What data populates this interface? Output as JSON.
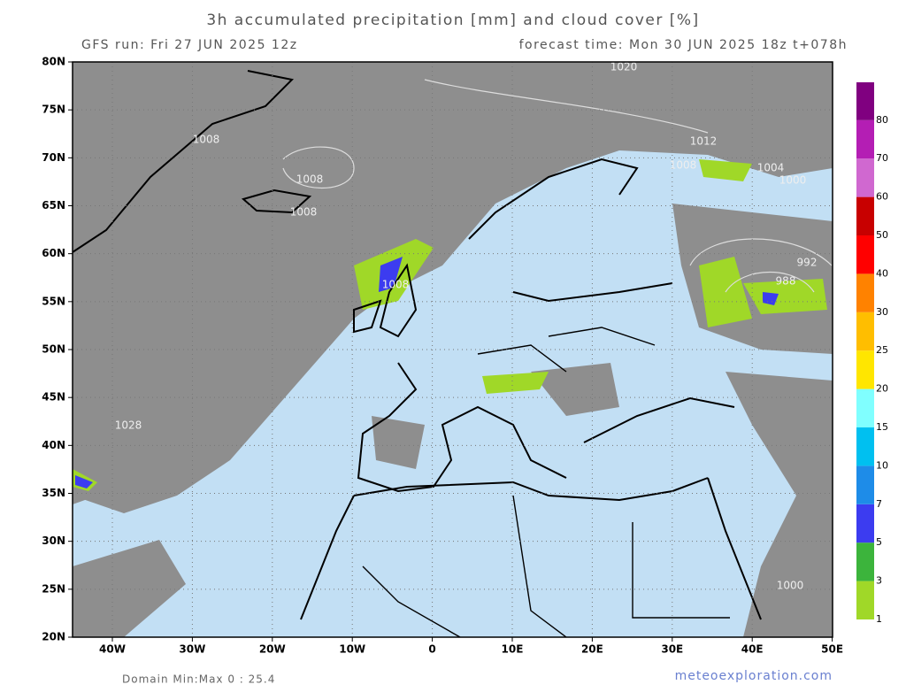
{
  "header": {
    "title": "3h accumulated precipitation [mm] and cloud cover [%]",
    "run": "GFS run: Fri 27 JUN 2025 12z",
    "forecast": "forecast time: Mon 30 JUN 2025 18z  t+078h"
  },
  "map": {
    "lon_ticks": [
      "40W",
      "30W",
      "20W",
      "10W",
      "0",
      "10E",
      "20E",
      "30E",
      "40E",
      "50E"
    ],
    "lat_ticks": [
      "80N",
      "75N",
      "70N",
      "65N",
      "60N",
      "55N",
      "50N",
      "45N",
      "40N",
      "35N",
      "30N",
      "25N",
      "20N"
    ],
    "isobar_labels": [
      "1020",
      "1008",
      "1008",
      "1008",
      "1012",
      "1008",
      "1004",
      "1000",
      "992",
      "988",
      "1008",
      "1028",
      "1000"
    ]
  },
  "colorbar": {
    "levels": [
      1,
      3,
      5,
      7,
      10,
      15,
      20,
      25,
      30,
      40,
      50,
      60,
      70,
      80
    ],
    "colors": [
      "#a0d828",
      "#3cb43c",
      "#3c3cf0",
      "#1e8ce8",
      "#00c0f0",
      "#80ffff",
      "#ffe600",
      "#ffbe00",
      "#ff8200",
      "#ff0000",
      "#c80000",
      "#d068d0",
      "#b41eb4",
      "#800080"
    ]
  },
  "footer": {
    "domain": "Domain Min:Max 0 : 25.4",
    "credit": "meteoexploration.com"
  }
}
